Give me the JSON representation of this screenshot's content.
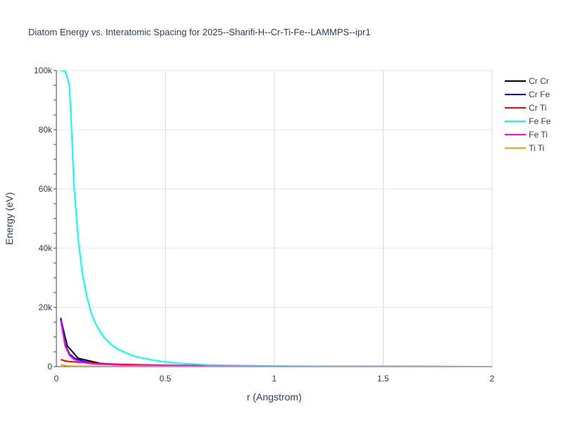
{
  "chart_data": {
    "type": "line",
    "title": "Diatom Energy vs. Interatomic Spacing for 2025--Sharifi-H--Cr-Ti-Fe--LAMMPS--ipr1",
    "xlabel": "r (Angstrom)",
    "ylabel": "Energy (eV)",
    "xlim": [
      0,
      2
    ],
    "ylim": [
      0,
      100000
    ],
    "x_ticks": [
      0,
      0.5,
      1,
      1.5,
      2
    ],
    "x_tick_labels": [
      "0",
      "0.5",
      "1",
      "1.5",
      "2"
    ],
    "y_ticks": [
      0,
      20000,
      40000,
      60000,
      80000,
      100000
    ],
    "y_tick_labels": [
      "0",
      "20k",
      "40k",
      "60k",
      "80k",
      "100k"
    ],
    "grid": true,
    "legend_position": "top-right",
    "series": [
      {
        "name": "Cr Cr",
        "color": "#000000",
        "x": [
          0.02,
          0.05,
          0.1,
          0.2,
          0.3,
          0.5,
          1.0,
          1.5,
          2.0
        ],
        "y": [
          16000,
          7000,
          2800,
          1100,
          600,
          250,
          60,
          20,
          0
        ]
      },
      {
        "name": "Cr Fe",
        "color": "#0000ff",
        "x": [
          0.02,
          0.04,
          0.06,
          0.08,
          0.1,
          0.13,
          0.16,
          0.2,
          0.3,
          0.4,
          0.5,
          0.7,
          1.0,
          1.5,
          2.0
        ],
        "y": [
          16500,
          7500,
          4300,
          3000,
          2400,
          1700,
          1250,
          900,
          550,
          380,
          250,
          150,
          60,
          20,
          0
        ]
      },
      {
        "name": "Cr Ti",
        "color": "#ff0000",
        "x": [
          0.02,
          0.04,
          0.06,
          0.08,
          0.1,
          0.13,
          0.16,
          0.2,
          0.25,
          0.3,
          0.4,
          0.5,
          0.7,
          1.0,
          1.5,
          2.0
        ],
        "y": [
          2400,
          1900,
          1700,
          1600,
          1500,
          1350,
          1200,
          1050,
          900,
          780,
          600,
          450,
          300,
          150,
          50,
          0
        ]
      },
      {
        "name": "Fe Fe",
        "color": "#00ffff",
        "x": [
          0.02,
          0.04,
          0.06,
          0.07,
          0.08,
          0.1,
          0.12,
          0.14,
          0.16,
          0.18,
          0.2,
          0.22,
          0.25,
          0.28,
          0.32,
          0.36,
          0.4,
          0.45,
          0.5,
          0.55,
          0.6,
          0.7,
          0.8,
          1.0,
          1.2,
          1.5,
          2.0
        ],
        "y": [
          100000,
          100000,
          95000,
          80000,
          62000,
          43000,
          31000,
          23500,
          18000,
          14500,
          11800,
          9800,
          7600,
          6000,
          4600,
          3500,
          2800,
          2100,
          1600,
          1200,
          950,
          600,
          420,
          220,
          120,
          50,
          0
        ]
      },
      {
        "name": "Fe Ti",
        "color": "#ff00ff",
        "x": [
          0.02,
          0.04,
          0.06,
          0.08,
          0.1,
          0.13,
          0.16,
          0.2,
          0.3,
          0.4,
          0.5,
          0.7,
          1.0,
          1.5,
          2.0
        ],
        "y": [
          15500,
          7000,
          3800,
          2500,
          1800,
          1300,
          1000,
          800,
          520,
          370,
          260,
          150,
          60,
          20,
          0
        ]
      },
      {
        "name": "Ti Ti",
        "color": "#ffa500",
        "x": [
          0.02,
          0.04,
          0.06,
          0.1,
          0.15,
          0.2,
          0.3,
          0.5,
          1.0,
          1.5,
          2.0
        ],
        "y": [
          700,
          350,
          220,
          140,
          100,
          80,
          60,
          40,
          20,
          10,
          0
        ]
      }
    ]
  }
}
